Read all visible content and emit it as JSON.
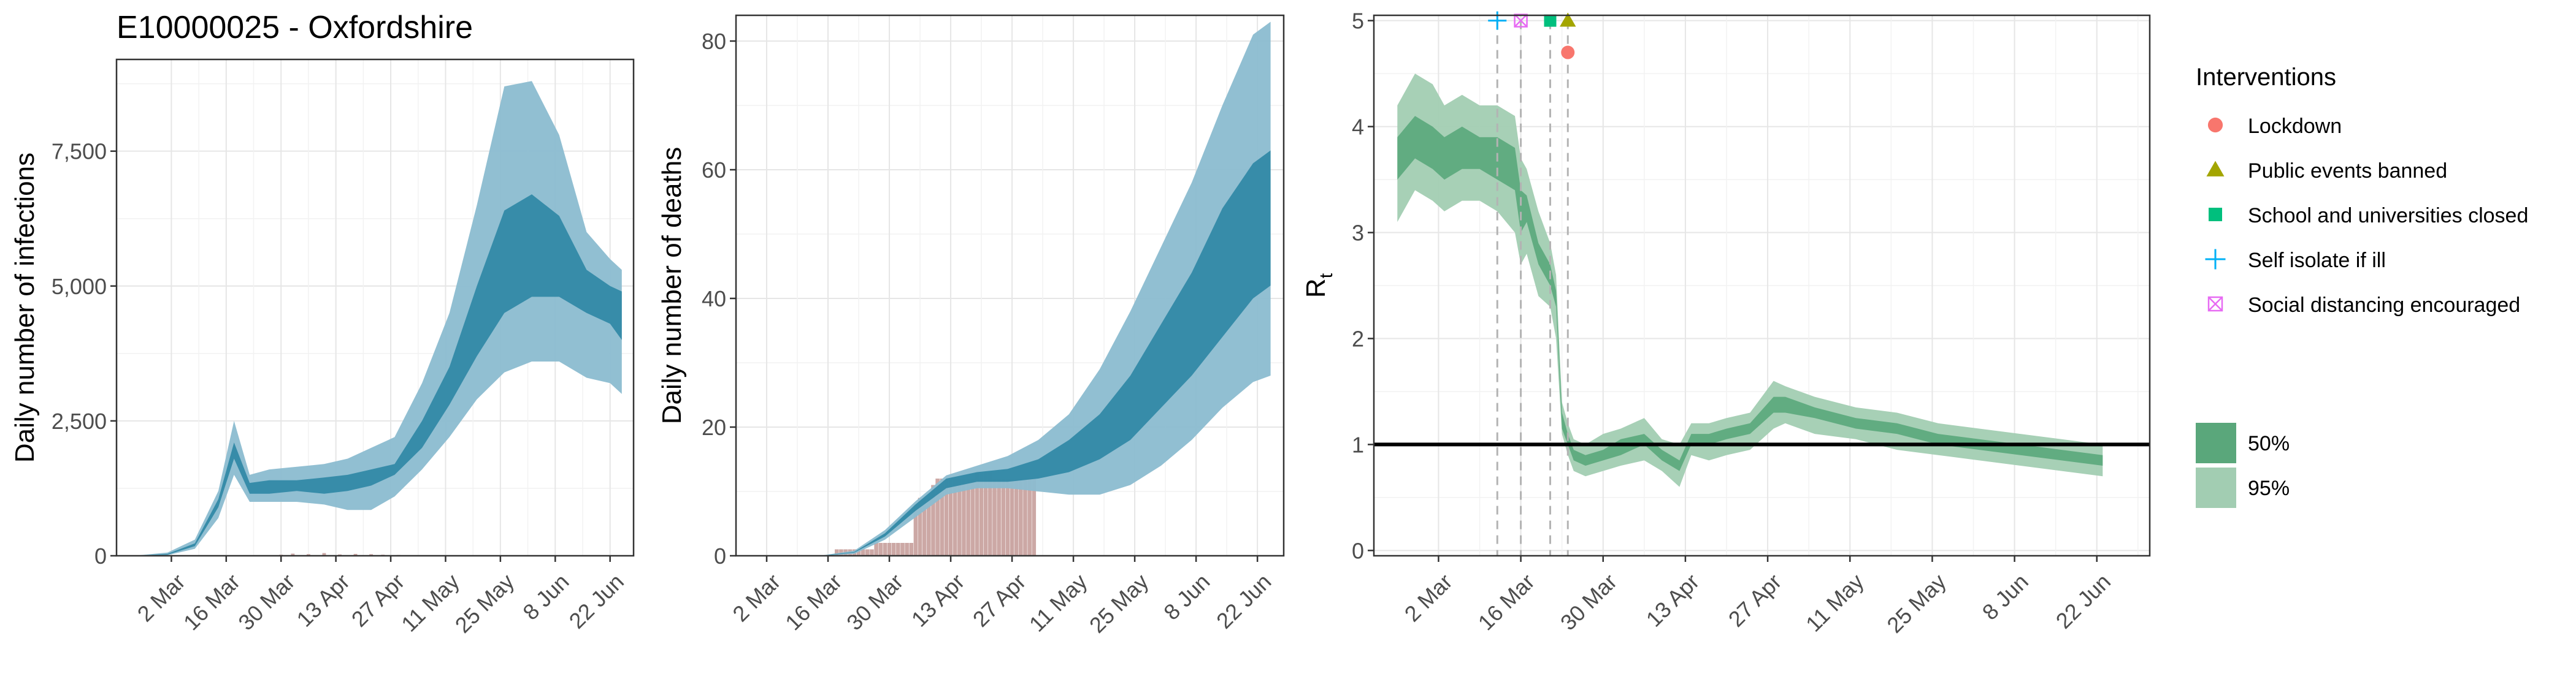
{
  "page_title": "E10000025 - Oxfordshire",
  "colors": {
    "blue_50": "#2e86a4",
    "blue_95": "#8bbcd0",
    "green_50": "#5aa77b",
    "green_95": "#a2cdb2",
    "deaths_bar": "#c79f9b",
    "threshold_line": "#000000",
    "lockdown": "#f8766d",
    "public_events": "#a3a500",
    "schools": "#00bf7d",
    "self_isolate": "#00b0f6",
    "social_distancing": "#e76bf3"
  },
  "x_ticks": [
    "2 Mar",
    "16 Mar",
    "30 Mar",
    "13 Apr",
    "27 Apr",
    "11 May",
    "25 May",
    "8 Jun",
    "22 Jun"
  ],
  "chart_data": [
    {
      "type": "area",
      "id": "infections",
      "title": "E10000025 - Oxfordshire",
      "xlabel": "",
      "ylabel": "Daily number of infections",
      "ylim": [
        0,
        9200
      ],
      "xlim": [
        "2020-02-17",
        "2020-06-28"
      ],
      "yticks": [
        0,
        2500,
        5000,
        7500
      ],
      "ytick_labels": [
        "0",
        "2,500",
        "5,000",
        "7,500"
      ],
      "grid": true,
      "x": [
        "2020-02-22",
        "2020-03-01",
        "2020-03-08",
        "2020-03-14",
        "2020-03-18",
        "2020-03-22",
        "2020-03-27",
        "2020-04-03",
        "2020-04-10",
        "2020-04-16",
        "2020-04-22",
        "2020-04-28",
        "2020-05-05",
        "2020-05-12",
        "2020-05-19",
        "2020-05-26",
        "2020-06-02",
        "2020-06-09",
        "2020-06-16",
        "2020-06-22",
        "2020-06-25"
      ],
      "series": [
        {
          "name": "95%",
          "lower": [
            0,
            10,
            130,
            700,
            1500,
            1000,
            1000,
            1000,
            950,
            850,
            850,
            1100,
            1600,
            2200,
            2900,
            3400,
            3600,
            3600,
            3300,
            3200,
            3000
          ],
          "upper": [
            5,
            60,
            300,
            1200,
            2500,
            1500,
            1600,
            1650,
            1700,
            1800,
            2000,
            2200,
            3200,
            4500,
            6500,
            8700,
            8800,
            7800,
            6000,
            5500,
            5300
          ]
        },
        {
          "name": "50%",
          "lower": [
            0,
            20,
            180,
            900,
            1800,
            1150,
            1150,
            1200,
            1150,
            1200,
            1300,
            1500,
            2000,
            2800,
            3700,
            4500,
            4800,
            4800,
            4500,
            4300,
            4000
          ],
          "upper": [
            0,
            35,
            230,
            1050,
            2100,
            1350,
            1400,
            1400,
            1450,
            1500,
            1600,
            1700,
            2500,
            3500,
            5000,
            6400,
            6700,
            6300,
            5300,
            5000,
            4900
          ]
        }
      ],
      "observed": {
        "x": [
          "2020-03-30",
          "2020-04-02",
          "2020-04-06",
          "2020-04-10",
          "2020-04-14",
          "2020-04-18",
          "2020-04-22",
          "2020-04-25",
          "2020-04-29",
          "2020-05-03"
        ],
        "values": [
          20,
          40,
          30,
          50,
          25,
          35,
          30,
          20,
          15,
          10
        ]
      }
    },
    {
      "type": "area",
      "id": "deaths",
      "title": "",
      "xlabel": "",
      "ylabel": "Daily number of deaths",
      "ylim": [
        0,
        84
      ],
      "xlim": [
        "2020-02-24",
        "2020-06-28"
      ],
      "yticks": [
        0,
        20,
        40,
        60,
        80
      ],
      "ytick_labels": [
        "0",
        "20",
        "40",
        "60",
        "80"
      ],
      "grid": true,
      "x": [
        "2020-03-01",
        "2020-03-15",
        "2020-03-22",
        "2020-03-29",
        "2020-04-05",
        "2020-04-12",
        "2020-04-19",
        "2020-04-26",
        "2020-05-03",
        "2020-05-10",
        "2020-05-17",
        "2020-05-24",
        "2020-05-31",
        "2020-06-07",
        "2020-06-14",
        "2020-06-21",
        "2020-06-25"
      ],
      "series": [
        {
          "name": "95%",
          "lower": [
            0,
            0,
            0.3,
            2.5,
            6,
            9.5,
            10.5,
            10.5,
            10,
            9.5,
            9.5,
            11,
            14,
            18,
            23,
            27,
            28
          ],
          "upper": [
            0,
            0.1,
            0.8,
            4,
            8.5,
            12.5,
            14,
            15.5,
            18,
            22,
            29,
            38,
            48,
            58,
            70,
            81,
            83
          ]
        },
        {
          "name": "50%",
          "lower": [
            0,
            0,
            0.5,
            3,
            7,
            10.5,
            11.5,
            11.5,
            12,
            13,
            15,
            18,
            23,
            28,
            34,
            40,
            42
          ],
          "upper": [
            0,
            0.05,
            0.6,
            3.5,
            8,
            12,
            13,
            13.5,
            15,
            18,
            22,
            28,
            36,
            44,
            54,
            61,
            63
          ]
        }
      ],
      "observed": {
        "x": [
          "2020-03-18",
          "2020-03-19",
          "2020-03-20",
          "2020-03-21",
          "2020-03-22",
          "2020-03-23",
          "2020-03-24",
          "2020-03-25",
          "2020-03-26",
          "2020-03-27",
          "2020-03-28",
          "2020-03-29",
          "2020-03-30",
          "2020-03-31",
          "2020-04-01",
          "2020-04-02",
          "2020-04-03",
          "2020-04-04",
          "2020-04-05",
          "2020-04-06",
          "2020-04-07",
          "2020-04-08",
          "2020-04-09",
          "2020-04-10",
          "2020-04-11",
          "2020-04-12",
          "2020-04-13",
          "2020-04-14",
          "2020-04-15",
          "2020-04-16",
          "2020-04-17",
          "2020-04-18",
          "2020-04-19",
          "2020-04-20",
          "2020-04-21",
          "2020-04-22",
          "2020-04-23",
          "2020-04-24",
          "2020-04-25",
          "2020-04-26",
          "2020-04-27",
          "2020-04-28",
          "2020-04-29",
          "2020-04-30",
          "2020-05-01",
          "2020-05-02"
        ],
        "values": [
          1,
          1,
          1,
          1,
          1,
          1,
          1,
          1,
          1,
          2,
          2,
          2,
          2,
          2,
          2,
          2,
          2,
          2,
          8,
          9,
          9,
          9,
          11,
          12,
          12,
          12,
          12,
          12,
          12,
          12,
          12,
          12,
          13,
          13,
          13,
          13,
          12,
          12,
          12,
          12,
          12,
          12,
          12,
          12,
          12,
          12
        ]
      }
    },
    {
      "type": "area",
      "id": "rt",
      "title": "",
      "xlabel": "",
      "ylabel": "R",
      "ylabel_subscript": "t",
      "ylim": [
        -0.05,
        5.05
      ],
      "xlim": [
        "2020-02-20",
        "2020-07-01"
      ],
      "yticks": [
        0,
        1,
        2,
        3,
        4,
        5
      ],
      "ytick_labels": [
        "0",
        "1",
        "2",
        "3",
        "4",
        "5"
      ],
      "grid": true,
      "threshold": 1,
      "x": [
        "2020-02-24",
        "2020-02-27",
        "2020-03-01",
        "2020-03-03",
        "2020-03-06",
        "2020-03-09",
        "2020-03-12",
        "2020-03-15",
        "2020-03-16",
        "2020-03-17",
        "2020-03-19",
        "2020-03-21",
        "2020-03-22",
        "2020-03-23",
        "2020-03-24",
        "2020-03-25",
        "2020-03-27",
        "2020-03-30",
        "2020-04-02",
        "2020-04-06",
        "2020-04-09",
        "2020-04-12",
        "2020-04-14",
        "2020-04-17",
        "2020-04-20",
        "2020-04-24",
        "2020-04-28",
        "2020-04-30",
        "2020-05-05",
        "2020-05-12",
        "2020-05-19",
        "2020-05-26",
        "2020-06-02",
        "2020-06-09",
        "2020-06-16",
        "2020-06-23"
      ],
      "series": [
        {
          "name": "95%",
          "lower": [
            3.1,
            3.4,
            3.3,
            3.2,
            3.3,
            3.3,
            3.2,
            3.0,
            2.7,
            2.8,
            2.4,
            2.3,
            2.0,
            1.1,
            0.9,
            0.75,
            0.7,
            0.75,
            0.8,
            0.85,
            0.75,
            0.6,
            0.9,
            0.85,
            0.9,
            0.95,
            1.15,
            1.2,
            1.1,
            1.05,
            0.95,
            0.9,
            0.85,
            0.8,
            0.75,
            0.7
          ],
          "upper": [
            4.2,
            4.5,
            4.4,
            4.2,
            4.3,
            4.2,
            4.2,
            4.1,
            3.7,
            3.6,
            3.2,
            2.9,
            2.6,
            1.4,
            1.2,
            1.05,
            1.0,
            1.1,
            1.15,
            1.25,
            1.05,
            1.0,
            1.2,
            1.2,
            1.25,
            1.3,
            1.6,
            1.55,
            1.45,
            1.35,
            1.3,
            1.2,
            1.15,
            1.1,
            1.05,
            1.0
          ]
        },
        {
          "name": "50%",
          "lower": [
            3.5,
            3.7,
            3.6,
            3.5,
            3.6,
            3.6,
            3.5,
            3.4,
            3.0,
            3.1,
            2.7,
            2.5,
            2.3,
            1.15,
            1.0,
            0.85,
            0.8,
            0.85,
            0.9,
            1.0,
            0.85,
            0.75,
            1.0,
            1.0,
            1.05,
            1.1,
            1.3,
            1.3,
            1.25,
            1.15,
            1.1,
            1.0,
            0.95,
            0.9,
            0.85,
            0.8
          ],
          "upper": [
            3.9,
            4.1,
            4.0,
            3.9,
            4.0,
            3.9,
            3.9,
            3.8,
            3.4,
            3.35,
            2.9,
            2.7,
            2.45,
            1.3,
            1.1,
            0.95,
            0.9,
            0.95,
            1.05,
            1.1,
            0.95,
            0.85,
            1.1,
            1.1,
            1.15,
            1.2,
            1.45,
            1.45,
            1.35,
            1.25,
            1.2,
            1.1,
            1.05,
            1.0,
            0.95,
            0.9
          ]
        }
      ],
      "interventions": [
        {
          "name": "Self isolate if ill",
          "date": "2020-03-12",
          "y": 5.0,
          "shape": "plus",
          "color": "#00b0f6"
        },
        {
          "name": "Social distancing encouraged",
          "date": "2020-03-16",
          "y": 5.0,
          "shape": "boxx",
          "color": "#e76bf3"
        },
        {
          "name": "School and universities closed",
          "date": "2020-03-21",
          "y": 5.0,
          "shape": "square",
          "color": "#00bf7d"
        },
        {
          "name": "Public events banned",
          "date": "2020-03-24",
          "y": 5.0,
          "shape": "triangle",
          "color": "#a3a500"
        },
        {
          "name": "Lockdown",
          "date": "2020-03-24",
          "y": 4.7,
          "shape": "circle",
          "color": "#f8766d"
        }
      ]
    }
  ],
  "legend": {
    "interventions_title": "Interventions",
    "interventions": [
      {
        "label": "Lockdown",
        "shape": "circle",
        "color": "#f8766d"
      },
      {
        "label": "Public events banned",
        "shape": "triangle",
        "color": "#a3a500"
      },
      {
        "label": "School and universities closed",
        "shape": "square",
        "color": "#00bf7d"
      },
      {
        "label": "Self isolate if ill",
        "shape": "plus",
        "color": "#00b0f6"
      },
      {
        "label": "Social distancing encouraged",
        "shape": "boxx",
        "color": "#e76bf3"
      }
    ],
    "ci": [
      {
        "label": "50%",
        "color": "#5aa77b"
      },
      {
        "label": "95%",
        "color": "#a2cdb2"
      }
    ]
  }
}
